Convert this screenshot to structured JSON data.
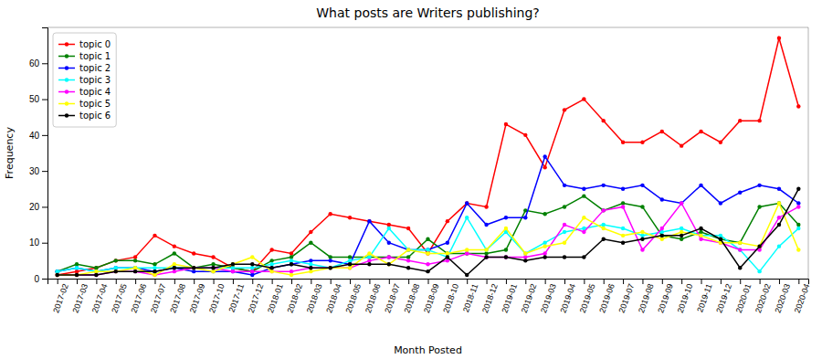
{
  "chart_data": {
    "type": "line",
    "title": "What posts are Writers publishing?",
    "xlabel": "Month Posted",
    "ylabel": "Frequency",
    "categories": [
      "2017-02",
      "2017-03",
      "2017-04",
      "2017-05",
      "2017-06",
      "2017-07",
      "2017-08",
      "2017-09",
      "2017-10",
      "2017-11",
      "2017-12",
      "2018-01",
      "2018-02",
      "2018-03",
      "2018-04",
      "2018-05",
      "2018-06",
      "2018-07",
      "2018-08",
      "2018-09",
      "2018-10",
      "2018-11",
      "2018-12",
      "2019-01",
      "2019-02",
      "2019-03",
      "2019-04",
      "2019-05",
      "2019-06",
      "2019-07",
      "2019-08",
      "2019-09",
      "2019-10",
      "2019-11",
      "2019-12",
      "2020-01",
      "2020-02",
      "2020-03",
      "2020-04"
    ],
    "series": [
      {
        "name": "topic 0",
        "color": "red",
        "values": [
          1,
          2,
          3,
          5,
          6,
          12,
          9,
          7,
          6,
          3,
          2,
          8,
          7,
          13,
          18,
          17,
          16,
          15,
          14,
          7,
          16,
          21,
          20,
          43,
          40,
          31,
          47,
          50,
          44,
          38,
          38,
          41,
          37,
          41,
          38,
          44,
          44,
          67,
          48
        ]
      },
      {
        "name": "topic 1",
        "color": "green",
        "values": [
          2,
          4,
          3,
          5,
          5,
          4,
          7,
          3,
          4,
          3,
          2,
          5,
          6,
          10,
          6,
          6,
          6,
          6,
          6,
          11,
          7,
          7,
          7,
          8,
          19,
          18,
          20,
          23,
          19,
          21,
          20,
          12,
          11,
          13,
          11,
          10,
          20,
          21,
          15
        ]
      },
      {
        "name": "topic 2",
        "color": "blue",
        "values": [
          2,
          3,
          2,
          3,
          3,
          2,
          3,
          2,
          2,
          2,
          1,
          3,
          4,
          5,
          5,
          4,
          16,
          10,
          8,
          8,
          10,
          21,
          15,
          17,
          17,
          34,
          26,
          25,
          26,
          25,
          26,
          22,
          21,
          26,
          21,
          24,
          26,
          25,
          21
        ]
      },
      {
        "name": "topic 3",
        "color": "cyan",
        "values": [
          2,
          3,
          2,
          3,
          3,
          3,
          3,
          3,
          3,
          3,
          3,
          4,
          5,
          4,
          3,
          5,
          6,
          14,
          8,
          8,
          6,
          17,
          8,
          13,
          7,
          10,
          13,
          14,
          15,
          14,
          12,
          13,
          14,
          12,
          12,
          8,
          2,
          9,
          14
        ]
      },
      {
        "name": "topic 4",
        "color": "magenta",
        "values": [
          1,
          1,
          1,
          2,
          2,
          1,
          2,
          3,
          3,
          2,
          2,
          2,
          2,
          3,
          3,
          3,
          5,
          6,
          5,
          4,
          5,
          7,
          6,
          6,
          6,
          7,
          15,
          13,
          19,
          20,
          8,
          14,
          21,
          11,
          10,
          8,
          8,
          17,
          20
        ]
      },
      {
        "name": "topic 5",
        "color": "yellow",
        "values": [
          1,
          1,
          2,
          2,
          3,
          1,
          4,
          3,
          2,
          4,
          6,
          2,
          1,
          2,
          3,
          3,
          7,
          4,
          8,
          7,
          7,
          8,
          8,
          14,
          7,
          9,
          10,
          17,
          14,
          12,
          13,
          11,
          13,
          12,
          10,
          10,
          9,
          21,
          8
        ]
      },
      {
        "name": "topic 6",
        "color": "black",
        "values": [
          1,
          1,
          1,
          2,
          2,
          2,
          3,
          3,
          3,
          4,
          4,
          3,
          4,
          3,
          3,
          4,
          4,
          4,
          3,
          2,
          6,
          1,
          6,
          6,
          5,
          6,
          6,
          6,
          11,
          10,
          11,
          12,
          12,
          14,
          11,
          3,
          9,
          15,
          25
        ]
      }
    ],
    "ylim": [
      0,
      70
    ],
    "yticks": [
      0,
      10,
      20,
      30,
      40,
      50,
      60
    ],
    "grid": false,
    "legend": "upper left",
    "marker": "circle",
    "line_style": "solid"
  }
}
